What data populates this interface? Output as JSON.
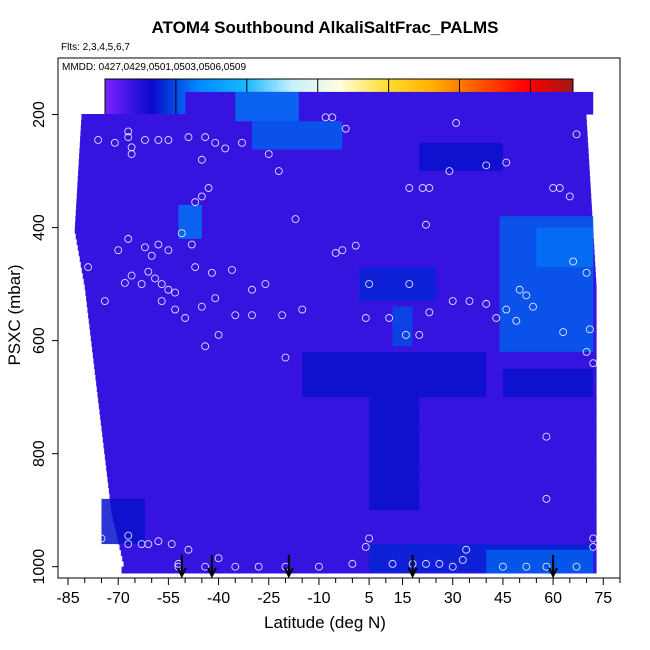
{
  "chart_data": {
    "type": "heatmap",
    "title": "ATOM4 Southbound AlkaliSaltFrac_PALMS",
    "subtitle_flights": "Flts: 2,3,4,5,6,7",
    "subtitle_dates": "MMDD: 0427,0429,0501,0503,0506,0509",
    "xlabel": "Latitude (deg N)",
    "ylabel": "PSXC (mbar)",
    "xlim": [
      -88,
      80
    ],
    "ylim": [
      1020,
      100
    ],
    "x_ticks": [
      -85,
      -70,
      -55,
      -40,
      -25,
      -10,
      5,
      15,
      30,
      45,
      60,
      75
    ],
    "x_minor_ticks": [
      -80,
      -75,
      -65,
      -60,
      -50,
      -45,
      -35,
      -30,
      -20,
      -15,
      -5,
      0,
      10,
      20,
      25,
      35,
      40,
      50,
      55,
      65,
      70,
      80
    ],
    "y_ticks": [
      200,
      400,
      600,
      800,
      1000
    ],
    "colorbar": {
      "min": 0,
      "max": 0.066,
      "ticks": [
        "0.00",
        "0.01",
        "0.02",
        "0.03",
        "0.04",
        "0.05",
        "0.06"
      ],
      "stops": [
        "#7b22ff",
        "#0a0aca",
        "#0088ff",
        "#17b8ff",
        "#c8f0ff",
        "#fffde0",
        "#ffde33",
        "#ffb000",
        "#ff5500",
        "#ff0000",
        "#a01818"
      ]
    },
    "background_value": 0.004,
    "coverage_bounds": [
      [
        200,
        -81,
        70
      ],
      [
        300,
        -82,
        71
      ],
      [
        400,
        -83,
        72
      ],
      [
        500,
        -80,
        73
      ],
      [
        600,
        -78,
        73
      ],
      [
        700,
        -76,
        73
      ],
      [
        800,
        -74,
        73
      ],
      [
        900,
        -72,
        73
      ],
      [
        1000,
        -68,
        73
      ]
    ],
    "enhanced_regions": [
      {
        "lat": [
          -35,
          -16
        ],
        "p": [
          160,
          212
        ],
        "value": 0.012
      },
      {
        "lat": [
          -30,
          -3
        ],
        "p": [
          212,
          262
        ],
        "value": 0.011
      },
      {
        "lat": [
          -52,
          -45
        ],
        "p": [
          360,
          420
        ],
        "value": 0.012
      },
      {
        "lat": [
          2,
          25
        ],
        "p": [
          470,
          530
        ],
        "value": 0.008
      },
      {
        "lat": [
          12,
          18
        ],
        "p": [
          540,
          610
        ],
        "value": 0.01
      },
      {
        "lat": [
          44,
          72
        ],
        "p": [
          380,
          620
        ],
        "value": 0.011
      },
      {
        "lat": [
          55,
          72
        ],
        "p": [
          400,
          470
        ],
        "value": 0.012
      },
      {
        "lat": [
          20,
          45
        ],
        "p": [
          250,
          300
        ],
        "value": 0.007
      },
      {
        "lat": [
          -15,
          40
        ],
        "p": [
          620,
          700
        ],
        "value": 0.007
      },
      {
        "lat": [
          5,
          20
        ],
        "p": [
          700,
          900
        ],
        "value": 0.007
      },
      {
        "lat": [
          45,
          72
        ],
        "p": [
          650,
          700
        ],
        "value": 0.007
      },
      {
        "lat": [
          -75,
          -62
        ],
        "p": [
          880,
          960
        ],
        "value": 0.007
      },
      {
        "lat": [
          5,
          72
        ],
        "p": [
          960,
          1010
        ],
        "value": 0.008
      },
      {
        "lat": [
          40,
          72
        ],
        "p": [
          970,
          1012
        ],
        "value": 0.011
      }
    ],
    "observations": [
      [
        -76,
        245
      ],
      [
        -71,
        250
      ],
      [
        -67,
        230
      ],
      [
        -67,
        240
      ],
      [
        -66,
        258
      ],
      [
        -66,
        270
      ],
      [
        -62,
        245
      ],
      [
        -58,
        245
      ],
      [
        -55,
        245
      ],
      [
        -49,
        240
      ],
      [
        -45,
        280
      ],
      [
        -44,
        240
      ],
      [
        -41,
        250
      ],
      [
        -38,
        260
      ],
      [
        -33,
        250
      ],
      [
        -25,
        270
      ],
      [
        -22,
        300
      ],
      [
        -8,
        205
      ],
      [
        -6,
        205
      ],
      [
        -2,
        225
      ],
      [
        -47,
        355
      ],
      [
        -45,
        345
      ],
      [
        -43,
        330
      ],
      [
        -17,
        385
      ],
      [
        -5,
        445
      ],
      [
        -3,
        440
      ],
      [
        1,
        432
      ],
      [
        17,
        330
      ],
      [
        21,
        330
      ],
      [
        23,
        330
      ],
      [
        22,
        395
      ],
      [
        29,
        300
      ],
      [
        40,
        290
      ],
      [
        46,
        285
      ],
      [
        31,
        215
      ],
      [
        60,
        330
      ],
      [
        62,
        330
      ],
      [
        65,
        345
      ],
      [
        67,
        235
      ],
      [
        -67,
        420
      ],
      [
        -70,
        440
      ],
      [
        -62,
        435
      ],
      [
        -60,
        450
      ],
      [
        -58,
        430
      ],
      [
        -55,
        440
      ],
      [
        -51,
        410
      ],
      [
        -48,
        430
      ],
      [
        -66,
        485
      ],
      [
        -68,
        498
      ],
      [
        -63,
        500
      ],
      [
        -61,
        478
      ],
      [
        -59,
        490
      ],
      [
        -57,
        500
      ],
      [
        -55,
        510
      ],
      [
        -53,
        515
      ],
      [
        -47,
        470
      ],
      [
        -42,
        480
      ],
      [
        -36,
        475
      ],
      [
        -30,
        510
      ],
      [
        -26,
        500
      ],
      [
        -41,
        525
      ],
      [
        -35,
        555
      ],
      [
        -30,
        555
      ],
      [
        -21,
        555
      ],
      [
        -15,
        545
      ],
      [
        -57,
        530
      ],
      [
        -53,
        545
      ],
      [
        -50,
        560
      ],
      [
        -45,
        540
      ],
      [
        -40,
        590
      ],
      [
        -44,
        610
      ],
      [
        -79,
        470
      ],
      [
        -74,
        530
      ],
      [
        5,
        500
      ],
      [
        17,
        500
      ],
      [
        11,
        560
      ],
      [
        4,
        560
      ],
      [
        16,
        590
      ],
      [
        20,
        590
      ],
      [
        23,
        550
      ],
      [
        30,
        530
      ],
      [
        35,
        530
      ],
      [
        40,
        535
      ],
      [
        43,
        560
      ],
      [
        46,
        545
      ],
      [
        50,
        510
      ],
      [
        52,
        520
      ],
      [
        54,
        540
      ],
      [
        66,
        460
      ],
      [
        70,
        480
      ],
      [
        71,
        580
      ],
      [
        75,
        580
      ],
      [
        63,
        585
      ],
      [
        70,
        620
      ],
      [
        49,
        565
      ],
      [
        72,
        640
      ],
      [
        -20,
        630
      ],
      [
        -63,
        960
      ],
      [
        -67,
        945
      ],
      [
        -67,
        960
      ],
      [
        -61,
        960
      ],
      [
        -58,
        955
      ],
      [
        -54,
        960
      ],
      [
        -52,
        1000
      ],
      [
        -49,
        970
      ],
      [
        -44,
        1000
      ],
      [
        -40,
        985
      ],
      [
        -35,
        1000
      ],
      [
        -28,
        1000
      ],
      [
        -20,
        1000
      ],
      [
        -10,
        1000
      ],
      [
        0,
        995
      ],
      [
        4,
        965
      ],
      [
        5,
        950
      ],
      [
        12,
        995
      ],
      [
        18,
        995
      ],
      [
        22,
        995
      ],
      [
        26,
        995
      ],
      [
        30,
        1000
      ],
      [
        34,
        970
      ],
      [
        33,
        988
      ],
      [
        45,
        1000
      ],
      [
        52,
        1000
      ],
      [
        58,
        1000
      ],
      [
        67,
        1000
      ],
      [
        72,
        965
      ],
      [
        72,
        950
      ],
      [
        58,
        880
      ],
      [
        58,
        770
      ],
      [
        -52,
        995
      ],
      [
        -75,
        950
      ]
    ],
    "arrows_lat": [
      -51,
      -42,
      -19,
      18,
      60
    ]
  }
}
